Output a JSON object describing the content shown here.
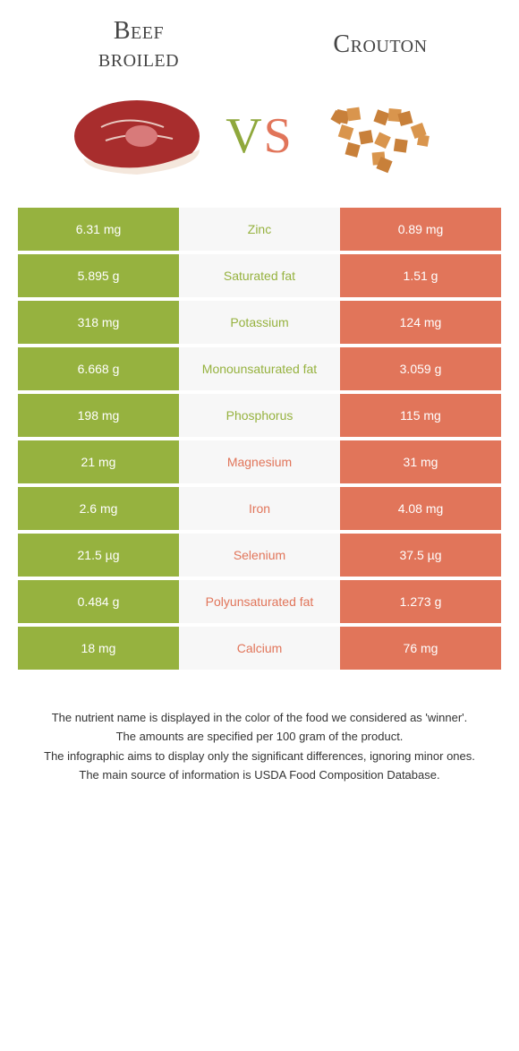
{
  "colors": {
    "left": "#96b23f",
    "right": "#e1755a",
    "mid_bg": "#f7f7f7"
  },
  "header": {
    "left_title": "Beef\nbroiled",
    "right_title": "Crouton",
    "vs_v": "V",
    "vs_s": "S"
  },
  "rows": [
    {
      "left": "6.31 mg",
      "label": "Zinc",
      "right": "0.89 mg",
      "winner": "left"
    },
    {
      "left": "5.895 g",
      "label": "Saturated fat",
      "right": "1.51 g",
      "winner": "left"
    },
    {
      "left": "318 mg",
      "label": "Potassium",
      "right": "124 mg",
      "winner": "left"
    },
    {
      "left": "6.668 g",
      "label": "Monounsaturated fat",
      "right": "3.059 g",
      "winner": "left"
    },
    {
      "left": "198 mg",
      "label": "Phosphorus",
      "right": "115 mg",
      "winner": "left"
    },
    {
      "left": "21 mg",
      "label": "Magnesium",
      "right": "31 mg",
      "winner": "right"
    },
    {
      "left": "2.6 mg",
      "label": "Iron",
      "right": "4.08 mg",
      "winner": "right"
    },
    {
      "left": "21.5 µg",
      "label": "Selenium",
      "right": "37.5 µg",
      "winner": "right"
    },
    {
      "left": "0.484 g",
      "label": "Polyunsaturated fat",
      "right": "1.273 g",
      "winner": "right"
    },
    {
      "left": "18 mg",
      "label": "Calcium",
      "right": "76 mg",
      "winner": "right"
    }
  ],
  "footnotes": [
    "The nutrient name is displayed in the color of the food we considered as 'winner'.",
    "The amounts are specified per 100 gram of the product.",
    "The infographic aims to display only the significant differences, ignoring minor ones.",
    "The main source of information is USDA Food Composition Database."
  ]
}
